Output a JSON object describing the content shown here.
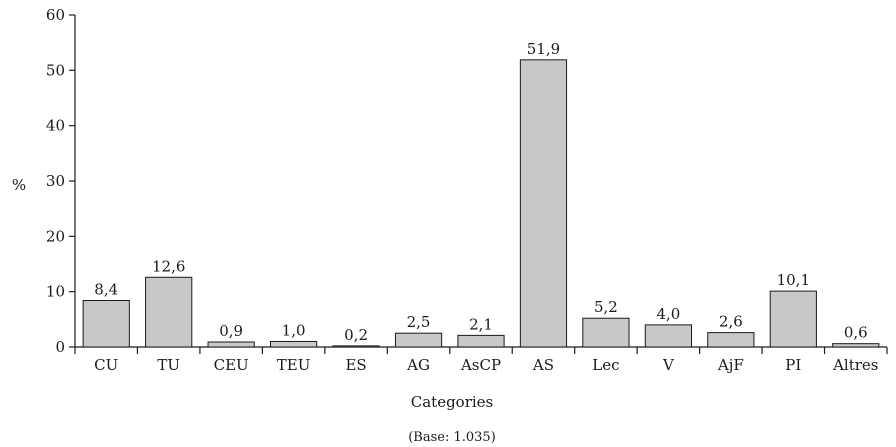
{
  "chart_data": {
    "type": "bar",
    "categories": [
      "CU",
      "TU",
      "CEU",
      "TEU",
      "ES",
      "AG",
      "AsCP",
      "AS",
      "Lec",
      "V",
      "AjF",
      "PI",
      "Altres"
    ],
    "values": [
      8.4,
      12.6,
      0.9,
      1.0,
      0.2,
      2.5,
      2.1,
      51.9,
      5.2,
      4.0,
      2.6,
      10.1,
      0.6
    ],
    "data_labels": [
      "8,4",
      "12,6",
      "0,9",
      "1,0",
      "0,2",
      "2,5",
      "2,1",
      "51,9",
      "5,2",
      "4,0",
      "2,6",
      "10,1",
      "0,6"
    ],
    "ylabel": "%",
    "xlabel": "Categories",
    "footnote": "(Base: 1.035)",
    "ylim": [
      0,
      60
    ],
    "yticks": [
      0,
      10,
      20,
      30,
      40,
      50,
      60
    ],
    "bar_color": "#c8c8c8",
    "grid": false,
    "legend": "none"
  }
}
